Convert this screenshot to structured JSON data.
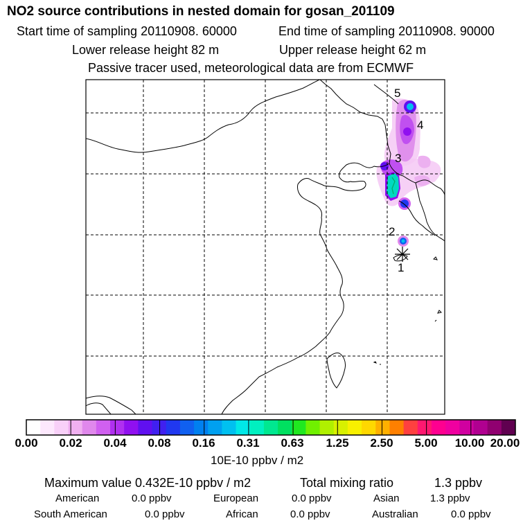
{
  "header": {
    "title": "NO2 source contributions in nested domain for gosan_201109",
    "start_time": "Start time of sampling 20110908. 60000",
    "end_time": "End time of sampling 20110908. 90000",
    "lower_release": "Lower release height   82 m",
    "upper_release": "Upper release height   62 m",
    "tracer_note": "Passive tracer used, meteorological data are from ECMWF"
  },
  "map": {
    "site_labels": [
      "1",
      "2",
      "3",
      "4",
      "5"
    ]
  },
  "colorbar": {
    "colors": [
      "#ffffff",
      "#fde8fd",
      "#f8d0f8",
      "#f0b0f0",
      "#e088ec",
      "#d060f0",
      "#b030f0",
      "#9010f0",
      "#6010f0",
      "#4020f0",
      "#2038f0",
      "#1060f0",
      "#0080f0",
      "#00a0f0",
      "#00c0f0",
      "#00e8e8",
      "#00f0c0",
      "#00e890",
      "#00e060",
      "#20e820",
      "#70f000",
      "#b0f000",
      "#d8f000",
      "#f8f000",
      "#ffd800",
      "#ffb000",
      "#ff8000",
      "#ff4040",
      "#ff1870",
      "#ff0090",
      "#f000a0",
      "#d000a0",
      "#b00090",
      "#900070",
      "#600050"
    ],
    "ticks": [
      "0.00",
      "0.02",
      "0.04",
      "0.08",
      "0.16",
      "0.31",
      "0.63",
      "1.25",
      "2.50",
      "5.00",
      "10.00",
      "20.00"
    ],
    "units": "10E-10 ppbv / m2"
  },
  "summary": {
    "max_value": "Maximum value  0.432E-10 ppbv / m2",
    "total_label": "Total mixing ratio",
    "total_value": "1.3 ppbv",
    "regions": [
      {
        "name": "American",
        "value": "0.0 ppbv"
      },
      {
        "name": "European",
        "value": "0.0 ppbv"
      },
      {
        "name": "Asian",
        "value": "1.3 ppbv"
      },
      {
        "name": "South American",
        "value": "0.0 ppbv"
      },
      {
        "name": "African",
        "value": "0.0 ppbv"
      },
      {
        "name": "Australian",
        "value": "0.0 ppbv"
      }
    ]
  }
}
